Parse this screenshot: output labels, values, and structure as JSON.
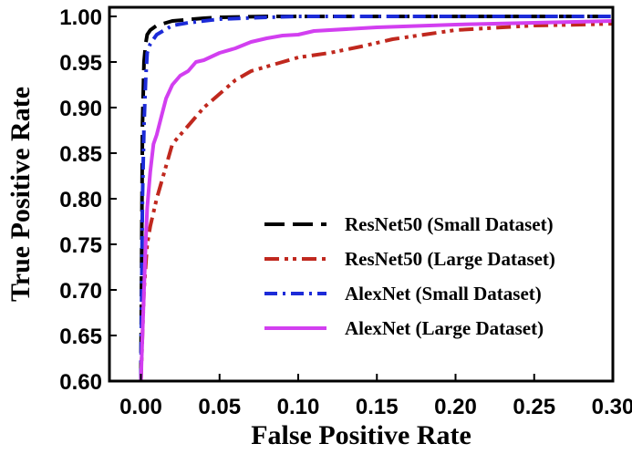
{
  "chart_data": {
    "type": "line",
    "title": "",
    "xlabel": "False Positive Rate",
    "ylabel": "True Positive Rate",
    "xlim": [
      -0.02,
      0.3
    ],
    "ylim": [
      0.6,
      1.01
    ],
    "xticks": [
      0.0,
      0.05,
      0.1,
      0.15,
      0.2,
      0.25,
      0.3
    ],
    "yticks": [
      0.6,
      0.65,
      0.7,
      0.75,
      0.8,
      0.85,
      0.9,
      0.95,
      1.0
    ],
    "xtick_labels": [
      "0.00",
      "0.05",
      "0.10",
      "0.15",
      "0.20",
      "0.25",
      "0.30"
    ],
    "ytick_labels": [
      "0.60",
      "0.65",
      "0.70",
      "0.75",
      "0.80",
      "0.85",
      "0.90",
      "0.95",
      "1.00"
    ],
    "grid": false,
    "legend_position": "lower-right",
    "series": [
      {
        "name": "ResNet50 (Small Dataset)",
        "color": "#000000",
        "dash": "dash",
        "x": [
          0.0,
          0.0005,
          0.001,
          0.002,
          0.003,
          0.004,
          0.006,
          0.01,
          0.02,
          0.04,
          0.05,
          0.08,
          0.1,
          0.15,
          0.2,
          0.25,
          0.3
        ],
        "y": [
          0.6,
          0.75,
          0.88,
          0.95,
          0.97,
          0.98,
          0.985,
          0.99,
          0.995,
          0.998,
          0.999,
          1.0,
          1.0,
          1.0,
          1.0,
          1.0,
          1.0
        ]
      },
      {
        "name": "ResNet50 (Large Dataset)",
        "color": "#c0281e",
        "dash": "dashdotdot",
        "x": [
          0.0,
          0.001,
          0.002,
          0.004,
          0.006,
          0.01,
          0.015,
          0.02,
          0.025,
          0.03,
          0.04,
          0.05,
          0.06,
          0.07,
          0.08,
          0.09,
          0.1,
          0.12,
          0.14,
          0.16,
          0.18,
          0.2,
          0.22,
          0.25,
          0.28,
          0.3
        ],
        "y": [
          0.6,
          0.65,
          0.7,
          0.75,
          0.77,
          0.8,
          0.83,
          0.86,
          0.87,
          0.88,
          0.9,
          0.915,
          0.93,
          0.94,
          0.945,
          0.95,
          0.955,
          0.96,
          0.967,
          0.975,
          0.98,
          0.985,
          0.987,
          0.99,
          0.991,
          0.992
        ]
      },
      {
        "name": "AlexNet (Small Dataset)",
        "color": "#1c2bd8",
        "dash": "dashdot",
        "x": [
          0.0,
          0.0005,
          0.001,
          0.002,
          0.003,
          0.004,
          0.006,
          0.01,
          0.02,
          0.03,
          0.05,
          0.08,
          0.1,
          0.15,
          0.2,
          0.25,
          0.3
        ],
        "y": [
          0.6,
          0.7,
          0.8,
          0.88,
          0.93,
          0.96,
          0.97,
          0.98,
          0.99,
          0.993,
          0.997,
          0.999,
          1.0,
          1.0,
          1.0,
          1.0,
          1.0
        ]
      },
      {
        "name": "AlexNet (Large Dataset)",
        "color": "#d23ff0",
        "dash": "solid",
        "x": [
          0.0,
          0.001,
          0.002,
          0.003,
          0.004,
          0.006,
          0.008,
          0.01,
          0.013,
          0.016,
          0.02,
          0.025,
          0.03,
          0.035,
          0.04,
          0.05,
          0.06,
          0.07,
          0.08,
          0.09,
          0.1,
          0.11,
          0.15,
          0.2,
          0.25,
          0.3
        ],
        "y": [
          0.6,
          0.65,
          0.7,
          0.75,
          0.79,
          0.83,
          0.86,
          0.87,
          0.89,
          0.91,
          0.925,
          0.935,
          0.94,
          0.95,
          0.952,
          0.96,
          0.965,
          0.972,
          0.976,
          0.979,
          0.98,
          0.984,
          0.988,
          0.991,
          0.993,
          0.995
        ]
      }
    ]
  }
}
